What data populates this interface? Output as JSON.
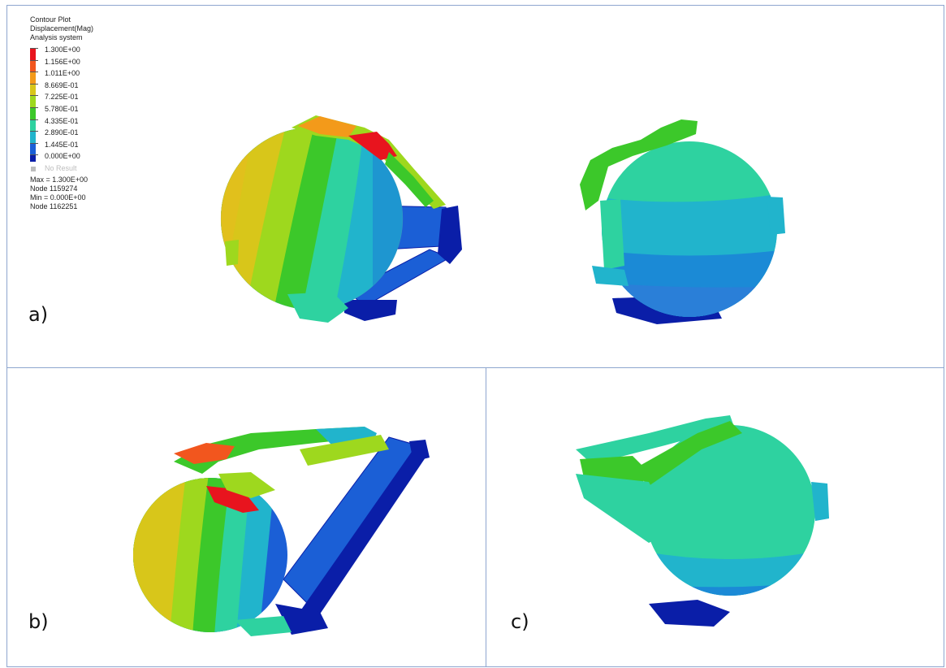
{
  "legend": {
    "title_lines": [
      "Contour Plot",
      "Displacement(Mag)",
      "Analysis system"
    ],
    "levels": [
      "1.300E+00",
      "1.156E+00",
      "1.011E+00",
      "8.669E-01",
      "7.225E-01",
      "5.780E-01",
      "4.335E-01",
      "2.890E-01",
      "1.445E-01",
      "0.000E+00"
    ],
    "band_colors": [
      "#e8141e",
      "#f2561e",
      "#f39a1a",
      "#d8c61a",
      "#9ed81e",
      "#3cc82a",
      "#2ed2a0",
      "#21b4cc",
      "#1b5fd6",
      "#0a1ea8"
    ],
    "no_result": "No Result",
    "max_line": "Max = 1.300E+00",
    "max_node": "Node 1159274",
    "min_line": "Min = 0.000E+00",
    "min_node": "Node 1162251"
  },
  "panels": {
    "a": {
      "label": "a)"
    },
    "b": {
      "label": "b)"
    },
    "c": {
      "label": "c)"
    }
  },
  "colors": {
    "frame_border": "#8ea6cf",
    "high": "#e8141e",
    "orange": "#f2561e",
    "yellow": "#d8c61a",
    "lime": "#9ed81e",
    "green": "#3cc82a",
    "teal": "#2ed2a0",
    "cyan": "#21b4cc",
    "blue": "#1b5fd6",
    "navy": "#0a1ea8"
  }
}
